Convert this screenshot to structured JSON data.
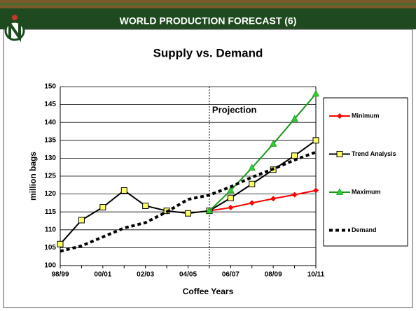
{
  "header": {
    "title": "WORLD PRODUCTION FORECAST (6)"
  },
  "chart_data": {
    "type": "line",
    "title": "Supply vs. Demand",
    "x_label": "Coffee Years",
    "y_label": "million bags",
    "annotation": "Projection",
    "categories": [
      "98/99",
      null,
      "00/01",
      null,
      "02/03",
      null,
      "04/05",
      null,
      "06/07",
      null,
      "08/09",
      null,
      "10/11"
    ],
    "series": [
      {
        "name": "Minimum",
        "color": "#ff0000",
        "marker": "diamond",
        "values": [
          null,
          null,
          null,
          null,
          null,
          null,
          null,
          115.3,
          116.2,
          117.5,
          118.7,
          119.8,
          121
        ]
      },
      {
        "name": "Trend Analysis",
        "color": "#000000",
        "marker": "square",
        "values": [
          106,
          112.7,
          116.3,
          121,
          116.7,
          115.3,
          114.6,
          115.3,
          118.9,
          122.8,
          126.8,
          130.7,
          135
        ]
      },
      {
        "name": "Maximum",
        "color": "#1a9a1a",
        "marker": "triangle",
        "values": [
          null,
          null,
          null,
          null,
          null,
          null,
          null,
          115.3,
          121,
          127.3,
          134,
          141,
          148
        ]
      },
      {
        "name": "Demand",
        "color": "#000000",
        "marker": "none",
        "dashed": true,
        "values": [
          104,
          105.5,
          108,
          110.5,
          112,
          115,
          118.5,
          119.7,
          122,
          124.7,
          127,
          129.5,
          131.7
        ]
      }
    ],
    "ylim": [
      100,
      150
    ],
    "yticks": [
      100,
      105,
      110,
      115,
      120,
      125,
      130,
      135,
      140,
      145,
      150
    ],
    "grid": true
  }
}
